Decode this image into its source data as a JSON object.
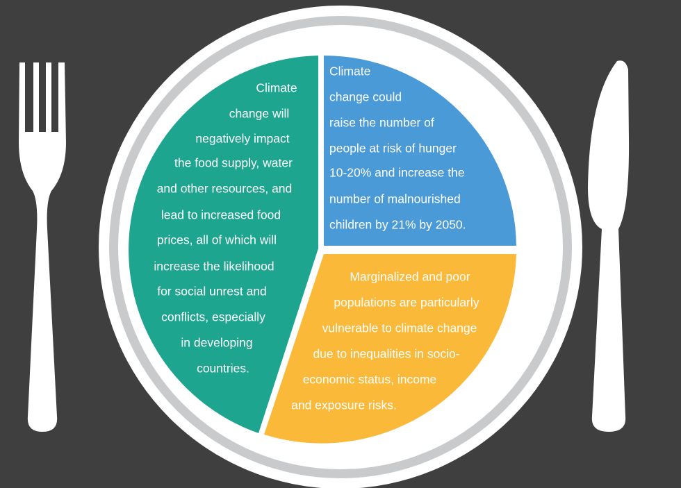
{
  "segments": [
    {
      "lines": [
        "Climate",
        "change will",
        "negatively impact",
        "the food supply, water",
        "and other resources, and",
        "lead to increased food",
        "prices, all of which will",
        "increase the likelihood",
        "for social unrest and",
        "conflicts, especially",
        "in developing",
        "countries."
      ]
    },
    {
      "lines": [
        "Climate",
        "change could",
        "raise the number of",
        "people at risk of hunger",
        "10-20% and increase the",
        "number of malnourished",
        "children by 21% by 2050."
      ]
    },
    {
      "lines": [
        "Marginalized and poor",
        "populations are particularly",
        "vulnerable to climate change",
        "due to inequalities in socio-",
        "economic status, income",
        "and exposure risks."
      ]
    }
  ]
}
